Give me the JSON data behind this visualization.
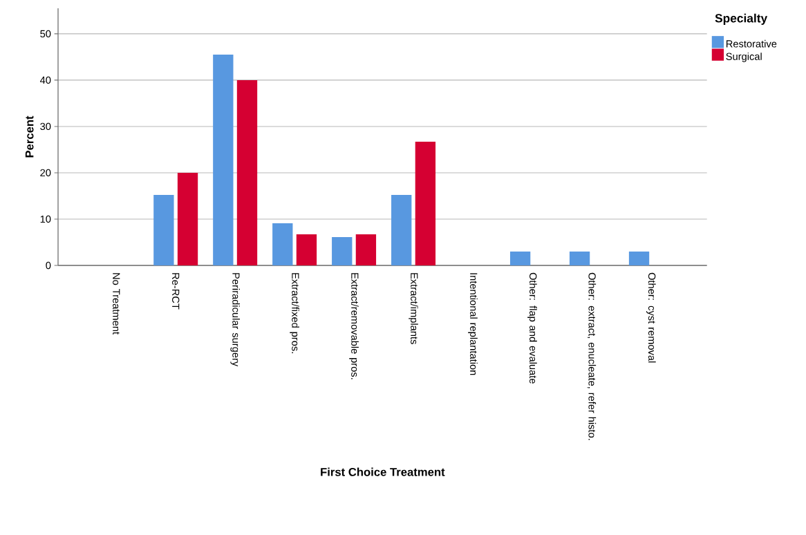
{
  "chart_data": {
    "type": "bar",
    "xlabel": "First Choice Treatment",
    "ylabel": "Percent",
    "legend_title": "Specialty",
    "categories": [
      "No Treatment",
      "Re-RCT",
      "Periradicular surgery",
      "Extract/fixed pros.",
      "Extract/removable pros.",
      "Extract/implants",
      "Intentional replantation",
      "Other: flap and evaluate",
      "Other: extract, enucleate, refer histo.",
      "Other: cyst removal"
    ],
    "series": [
      {
        "name": "Restorative",
        "color": "#5898e0",
        "values": [
          0,
          15.2,
          45.5,
          9.1,
          6.1,
          15.2,
          0,
          3.0,
          3.0,
          3.0
        ]
      },
      {
        "name": "Surgical",
        "color": "#d50032",
        "values": [
          0,
          20,
          40,
          6.7,
          6.7,
          26.7,
          0,
          0,
          0,
          0
        ]
      }
    ],
    "ylim": [
      0,
      55.5
    ],
    "yticks": [
      0,
      10,
      20,
      30,
      40,
      50
    ],
    "grid": "y",
    "legend": "top right"
  }
}
